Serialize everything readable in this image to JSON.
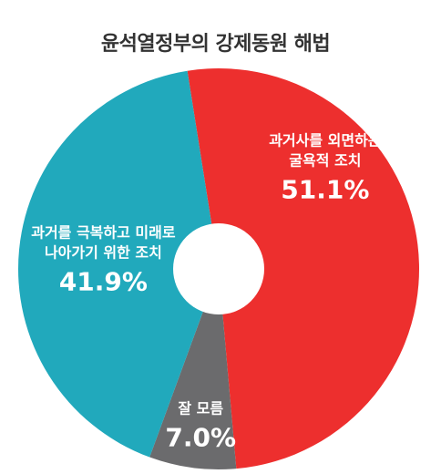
{
  "chart_data": {
    "type": "pie",
    "title": "윤석열정부의 강제동원 해법",
    "donut": true,
    "slices": [
      {
        "label_lines": [
          "과거사를 외면하는",
          "굴욕적 조치"
        ],
        "value": 51.1,
        "value_label": "51.1%",
        "color": "#ed2f2e"
      },
      {
        "label_lines": [
          "잘 모름"
        ],
        "value": 7.0,
        "value_label": "7.0%",
        "color": "#6b6b6d"
      },
      {
        "label_lines": [
          "과거를 극복하고 미래로",
          "나아가기 위한 조치"
        ],
        "value": 41.9,
        "value_label": "41.9%",
        "color": "#21a9bc"
      }
    ]
  }
}
